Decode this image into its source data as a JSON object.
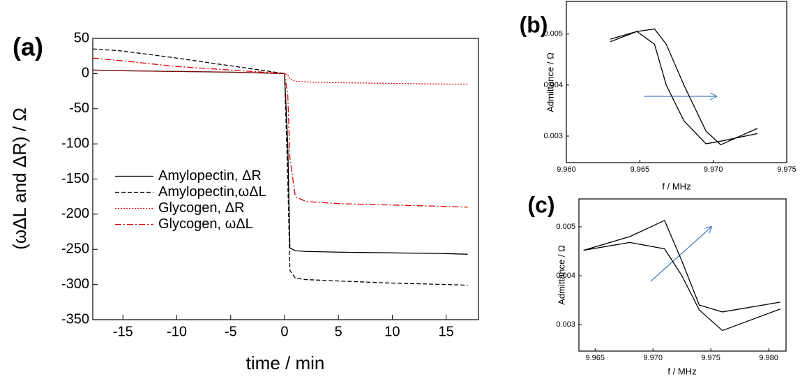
{
  "chart_data": [
    {
      "type": "line",
      "panel_label": "(a)",
      "xlabel": "time / min",
      "ylabel": "(ωΔL and ΔR) / Ω",
      "x": [
        -17.8,
        -15,
        -10,
        -5,
        0,
        0.3,
        0.5,
        1,
        2,
        5,
        10,
        15,
        17
      ],
      "series": [
        {
          "name": "Amylopectin, ΔR",
          "color": "#000000",
          "dash": "solid",
          "values": [
            5,
            4,
            3,
            2,
            0,
            -100,
            -248,
            -252,
            -253,
            -254,
            -255,
            -256,
            -257
          ]
        },
        {
          "name": "Amylopectin,ωΔL",
          "color": "#000000",
          "dash": "dashed",
          "values": [
            35,
            32,
            22,
            11,
            0,
            -150,
            -280,
            -291,
            -293,
            -295,
            -298,
            -300,
            -301
          ]
        },
        {
          "name": "Glycogen, ΔR",
          "color": "#e00000",
          "dash": "dotted",
          "values": [
            5,
            4,
            3,
            2,
            0,
            -2,
            -8,
            -11,
            -12,
            -13,
            -14,
            -15,
            -15
          ]
        },
        {
          "name": "Glycogen, ωΔL",
          "color": "#e00000",
          "dash": "dashdot",
          "values": [
            22,
            18,
            10,
            5,
            0,
            -30,
            -120,
            -175,
            -182,
            -185,
            -187,
            -189,
            -190
          ]
        }
      ],
      "xlim": [
        -17.8,
        18
      ],
      "xticks": [
        -15,
        -10,
        -5,
        0,
        5,
        10,
        15
      ],
      "ylim": [
        -350,
        50
      ],
      "yticks": [
        -350,
        -300,
        -250,
        -200,
        -150,
        -100,
        -50,
        0,
        50
      ],
      "legend": "center left"
    },
    {
      "type": "line",
      "panel_label": "(b)",
      "xlabel": "f / MHz",
      "ylabel": "Admittance / Ω",
      "x": [
        9.963,
        9.9648,
        9.966,
        9.9668,
        9.968,
        9.9695,
        9.9705,
        9.973
      ],
      "series": [
        {
          "color": "#000000",
          "dash": "solid",
          "values": [
            0.00485,
            0.00505,
            0.0048,
            0.004,
            0.0033,
            0.00285,
            0.0029,
            0.00305
          ]
        },
        {
          "color": "#000000",
          "dash": "solid",
          "values": [
            0.0049,
            0.00505,
            0.0051,
            0.0048,
            0.004,
            0.0031,
            0.00283,
            0.00315
          ]
        }
      ],
      "xlim": [
        9.96,
        9.975
      ],
      "xticks": [
        {
          "value": 9.96,
          "label": "9.960"
        },
        9.965,
        {
          "value": 9.97,
          "label": "9.970"
        },
        9.975
      ],
      "ylim": [
        0.00248,
        0.00564
      ],
      "yticks": [
        0.003,
        0.004,
        0.005
      ]
    },
    {
      "type": "line",
      "panel_label": "(c)",
      "xlabel": "f / MHz",
      "ylabel": "Admittance / Ω",
      "x": [
        9.964,
        9.968,
        9.971,
        9.9725,
        9.974,
        9.976,
        9.981
      ],
      "series": [
        {
          "color": "#000000",
          "dash": "solid",
          "values": [
            0.00452,
            0.00468,
            0.00455,
            0.004,
            0.0033,
            0.00288,
            0.00332
          ]
        },
        {
          "color": "#000000",
          "dash": "solid",
          "values": [
            0.00452,
            0.0048,
            0.00513,
            0.0043,
            0.0034,
            0.00326,
            0.00346
          ]
        }
      ],
      "xlim": [
        9.9636,
        9.9815
      ],
      "xticks": [
        9.965,
        {
          "value": 9.97,
          "label": "9.970"
        },
        9.975,
        {
          "value": 9.98,
          "label": "9.980"
        }
      ],
      "ylim": [
        0.00246,
        0.00557
      ],
      "yticks": [
        0.003,
        0.004,
        0.005
      ]
    }
  ]
}
